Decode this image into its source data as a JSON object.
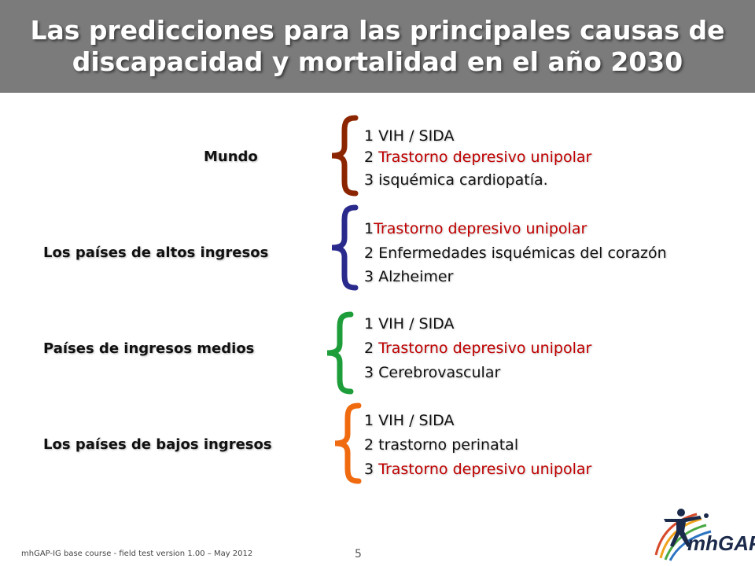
{
  "title": {
    "line1": "Las predicciones para las principales causas de",
    "line2": "discapacidad y mortalidad en el año 2030"
  },
  "groups": [
    {
      "label": "Mundo",
      "brace_color": "#8b2500",
      "items": [
        {
          "num": "1",
          "text": "VIH / SIDA",
          "highlight": false
        },
        {
          "num": "2",
          "text": "Trastorno depresivo unipolar",
          "highlight": true
        },
        {
          "num": "3",
          "text": "isquémica cardiopatía.",
          "highlight": false
        }
      ]
    },
    {
      "label": "Los países de altos ingresos",
      "brace_color": "#2a2a8c",
      "items": [
        {
          "num": "1",
          "text": "Trastorno depresivo unipolar",
          "highlight": true
        },
        {
          "num": "2",
          "text": "Enfermedades isquémicas del corazón",
          "highlight": false
        },
        {
          "num": "3",
          "text": "Alzheimer",
          "highlight": false
        }
      ]
    },
    {
      "label": "Países de ingresos medios",
      "brace_color": "#1e9e3a",
      "items": [
        {
          "num": "1",
          "text": "VIH / SIDA",
          "highlight": false
        },
        {
          "num": "2",
          "text": "Trastorno depresivo unipolar",
          "highlight": true
        },
        {
          "num": "3",
          "text": "Cerebrovascular",
          "highlight": false
        }
      ]
    },
    {
      "label": "Los países de bajos ingresos",
      "brace_color": "#f06a10",
      "items": [
        {
          "num": "1",
          "text": "VIH / SIDA",
          "highlight": false
        },
        {
          "num": "2",
          "text": "trastorno perinatal",
          "highlight": false
        },
        {
          "num": "3",
          "text": "Trastorno depresivo unipolar",
          "highlight": true
        }
      ]
    }
  ],
  "footer": {
    "text": "mhGAP-IG base course -  field test version 1.00 – May 2012",
    "page_number": "5"
  },
  "logo": {
    "text": "mhGAP",
    "icon": "person-figure-logo-icon"
  },
  "colors": {
    "header_bg": "#7b7b7b",
    "highlight": "#c00000"
  }
}
